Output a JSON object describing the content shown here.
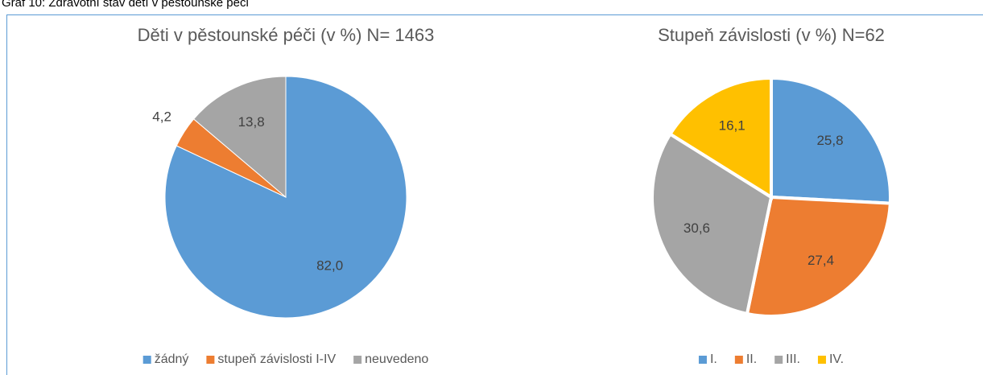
{
  "caption": "Graf 10: Zdravotní stav dětí v pěstounské péči",
  "chart_data": [
    {
      "type": "pie",
      "title": "Děti v pěstounské péči (v %) N= 1463",
      "categories": [
        "žádný",
        "stupeň závislosti I-IV",
        "neuvedeno"
      ],
      "values": [
        82.0,
        4.2,
        13.8
      ],
      "value_labels": [
        "82,0",
        "4,2",
        "13,8"
      ],
      "colors": [
        "#5b9bd5",
        "#ed7d31",
        "#a5a5a5"
      ],
      "legend": "bottom"
    },
    {
      "type": "pie",
      "title": "Stupeň závislosti (v %) N=62",
      "categories": [
        "I.",
        "II.",
        "III.",
        "IV."
      ],
      "values": [
        25.8,
        27.4,
        30.6,
        16.1
      ],
      "value_labels": [
        "25,8",
        "27,4",
        "30,6",
        "16,1"
      ],
      "colors": [
        "#5b9bd5",
        "#ed7d31",
        "#a5a5a5",
        "#ffc000"
      ],
      "legend": "bottom"
    }
  ]
}
